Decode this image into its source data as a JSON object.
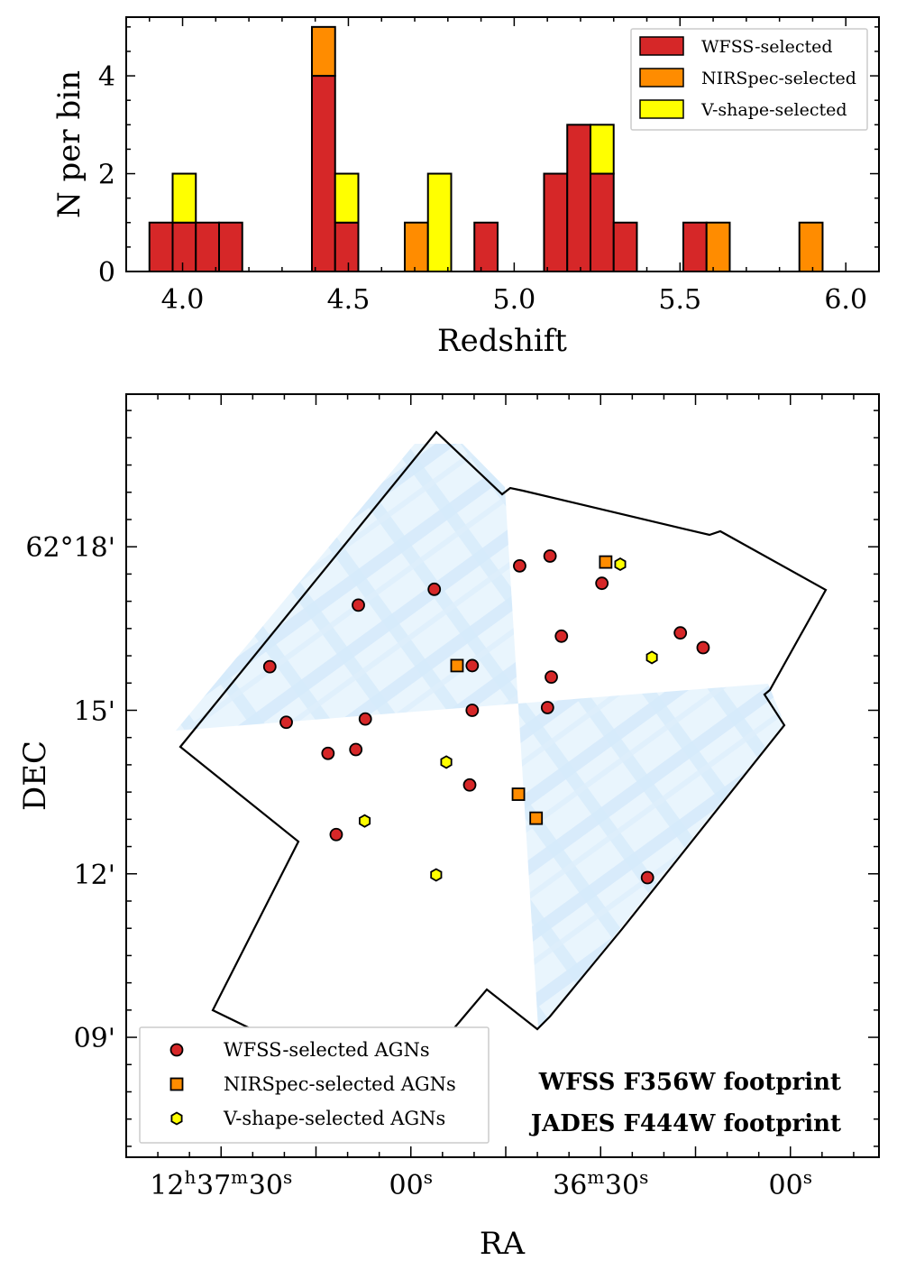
{
  "chart_data": [
    {
      "type": "bar",
      "subtype": "stacked-histogram",
      "title": "",
      "xlabel": "Redshift",
      "ylabel": "N per bin",
      "xlim": [
        3.83,
        6.1
      ],
      "ylim": [
        0,
        5.2
      ],
      "bin_width": 0.07,
      "x_ticks": [
        {
          "value": 4.0,
          "label": "4.0"
        },
        {
          "value": 4.5,
          "label": "4.5"
        },
        {
          "value": 5.0,
          "label": "5.0"
        },
        {
          "value": 5.5,
          "label": "5.5"
        },
        {
          "value": 6.0,
          "label": "6.0"
        }
      ],
      "y_ticks": [
        {
          "value": 0,
          "label": "0"
        },
        {
          "value": 2,
          "label": "2"
        },
        {
          "value": 4,
          "label": "4"
        }
      ],
      "bin_starts": [
        3.9,
        3.97,
        4.04,
        4.11,
        4.39,
        4.46,
        4.67,
        4.74,
        4.88,
        5.09,
        5.16,
        5.23,
        5.3,
        5.51,
        5.58,
        5.86
      ],
      "series": [
        {
          "name": "WFSS-selected",
          "color": "#d62728",
          "values": [
            1,
            1,
            1,
            1,
            4,
            1,
            0,
            0,
            1,
            2,
            3,
            2,
            1,
            1,
            0,
            0
          ]
        },
        {
          "name": "NIRSpec-selected",
          "color": "#ff8c00",
          "values": [
            0,
            0,
            0,
            0,
            1,
            0,
            1,
            0,
            0,
            0,
            0,
            0,
            0,
            0,
            1,
            1
          ]
        },
        {
          "name": "V-shape-selected",
          "color": "#ffff00",
          "values": [
            0,
            1,
            0,
            0,
            0,
            1,
            0,
            2,
            0,
            0,
            0,
            1,
            0,
            0,
            0,
            0
          ]
        }
      ],
      "legend_position": "top-right"
    },
    {
      "type": "scatter",
      "title": "",
      "xlabel": "RA",
      "ylabel": "DEC",
      "x_units": "RA seconds of time offset from 12h37m00s (east to the left)",
      "y_units": "DEC arcminutes offset from 62°00'",
      "xlim": [
        45,
        -74
      ],
      "ylim": [
        6.8,
        20.8
      ],
      "x_ticks": [
        {
          "value": 30,
          "sup": [
            "h",
            "m",
            "s"
          ],
          "parts": [
            "12",
            "37",
            "30"
          ]
        },
        {
          "value": 0,
          "sup": [
            "s"
          ],
          "parts": [
            "00"
          ]
        },
        {
          "value": -30,
          "sup": [
            "m",
            "s"
          ],
          "parts": [
            "36",
            "30"
          ]
        },
        {
          "value": -60,
          "sup": [
            "s"
          ],
          "parts": [
            "00"
          ]
        }
      ],
      "y_ticks": [
        {
          "value": 18,
          "label": "62°18'"
        },
        {
          "value": 15,
          "label": "15'"
        },
        {
          "value": 12,
          "label": "12'"
        },
        {
          "value": 9,
          "label": "09'"
        }
      ],
      "series": [
        {
          "name": "WFSS-selected AGNs",
          "marker": "circle",
          "color": "#d62728",
          "points": [
            {
              "x": -17.2,
              "y": 17.65
            },
            {
              "x": -22.0,
              "y": 17.83
            },
            {
              "x": -3.7,
              "y": 17.22
            },
            {
              "x": 8.3,
              "y": 16.93
            },
            {
              "x": -30.2,
              "y": 17.33
            },
            {
              "x": -23.8,
              "y": 16.36
            },
            {
              "x": -42.6,
              "y": 16.42
            },
            {
              "x": -46.2,
              "y": 16.15
            },
            {
              "x": 22.3,
              "y": 15.8
            },
            {
              "x": -9.7,
              "y": 15.82
            },
            {
              "x": -22.2,
              "y": 15.61
            },
            {
              "x": -21.6,
              "y": 15.05
            },
            {
              "x": 19.7,
              "y": 14.78
            },
            {
              "x": 7.2,
              "y": 14.84
            },
            {
              "x": -9.7,
              "y": 15.0
            },
            {
              "x": 13.1,
              "y": 14.21
            },
            {
              "x": 8.7,
              "y": 14.28
            },
            {
              "x": -9.3,
              "y": 13.63
            },
            {
              "x": 11.8,
              "y": 12.72
            },
            {
              "x": -37.4,
              "y": 11.93
            }
          ]
        },
        {
          "name": "NIRSpec-selected AGNs",
          "marker": "square",
          "color": "#ff8c00",
          "points": [
            {
              "x": -30.8,
              "y": 17.72
            },
            {
              "x": -7.3,
              "y": 15.82
            },
            {
              "x": -17.0,
              "y": 13.46
            },
            {
              "x": -19.8,
              "y": 13.02
            }
          ]
        },
        {
          "name": "V-shape-selected AGNs",
          "marker": "hexagon",
          "color": "#ffff00",
          "points": [
            {
              "x": -33.1,
              "y": 17.68
            },
            {
              "x": -38.1,
              "y": 15.97
            },
            {
              "x": -5.6,
              "y": 14.05
            },
            {
              "x": 7.3,
              "y": 12.97
            },
            {
              "x": -4.0,
              "y": 11.98
            }
          ]
        }
      ],
      "footprints": {
        "wfss_label": "WFSS F356W footprint",
        "wfss_color": "#8ecbf5",
        "jades_label": "JADES F444W footprint",
        "jades_color": "#000000"
      },
      "legend_position": "bottom-left"
    }
  ]
}
